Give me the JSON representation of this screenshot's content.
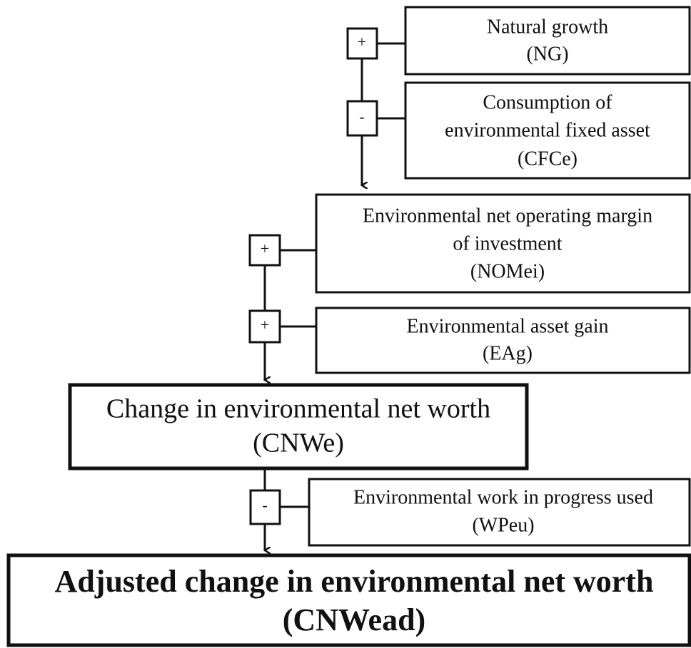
{
  "nodes": [
    {
      "lines": [
        "Natural growth",
        "(NG)"
      ]
    },
    {
      "lines": [
        "Consumption of",
        "environmental fixed asset",
        "(CFCe)"
      ]
    },
    {
      "lines": [
        "Environmental net operating margin",
        "of investment",
        "(NOMei)"
      ]
    },
    {
      "lines": [
        "Environmental asset gain",
        "(EAg)"
      ]
    },
    {
      "lines": [
        "Change in environmental net worth",
        "(CNWe)"
      ]
    },
    {
      "lines": [
        "Environmental work in progress used",
        "(WPeu)"
      ]
    },
    {
      "lines": [
        "Adjusted change in environmental net worth",
        "(CNWead)"
      ]
    }
  ],
  "operators": [
    "+",
    "-",
    "+",
    "+",
    "-"
  ]
}
